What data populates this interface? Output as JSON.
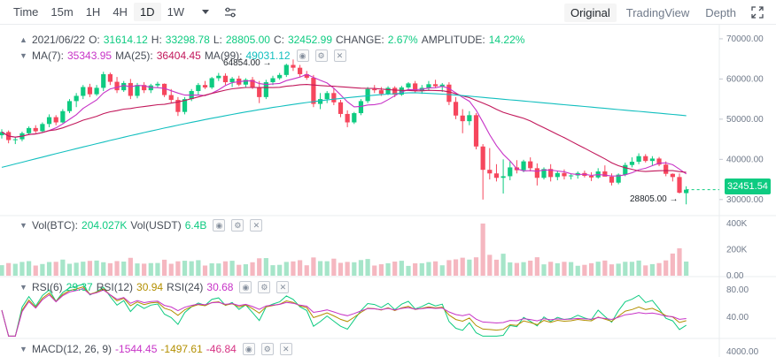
{
  "toolbar": {
    "timeframes": [
      {
        "label": "Time",
        "active": false
      },
      {
        "label": "15m",
        "active": false
      },
      {
        "label": "1H",
        "active": false
      },
      {
        "label": "4H",
        "active": false
      },
      {
        "label": "1D",
        "active": true
      },
      {
        "label": "1W",
        "active": false
      }
    ],
    "icons": [
      "dropdown-triangle-icon",
      "indicator-settings-icon"
    ],
    "views": [
      {
        "label": "Original",
        "active": true
      },
      {
        "label": "TradingView",
        "active": false
      },
      {
        "label": "Depth",
        "active": false
      }
    ],
    "expand_icon": "expand-icon"
  },
  "ohlc": {
    "date": "2021/06/22",
    "o_label": "O:",
    "o": "31614.12",
    "h_label": "H:",
    "h": "33298.78",
    "l_label": "L:",
    "l": "28805.00",
    "c_label": "C:",
    "c": "32452.99",
    "change_label": "CHANGE:",
    "change": "2.67%",
    "amp_label": "AMPLITUDE:",
    "amplitude": "14.22%"
  },
  "ma": {
    "ma7_label": "MA(7):",
    "ma7": "35343.95",
    "ma25_label": "MA(25):",
    "ma25": "36404.45",
    "ma99_label": "MA(99):",
    "ma99": "49031.12"
  },
  "vol": {
    "btc_label": "Vol(BTC):",
    "btc": "204.027K",
    "usdt_label": "Vol(USDT)",
    "usdt": "6.4B"
  },
  "rsi": {
    "r6_label": "RSI(6)",
    "r6": "29.37",
    "r12_label": "RSI(12)",
    "r12": "30.94",
    "r24_label": "RSI(24)",
    "r24": "30.68"
  },
  "macd": {
    "label": "MACD(12, 26, 9)",
    "v1": "-1544.45",
    "v2": "-1497.61",
    "v3": "-46.84"
  },
  "price_axis": [
    "70000.00",
    "60000.00",
    "50000.00",
    "40000.00",
    "30000.00"
  ],
  "vol_axis": [
    "400K",
    "200K",
    "0.00"
  ],
  "rsi_axis": [
    "80.00",
    "40.00"
  ],
  "macd_axis": [
    "4000.00"
  ],
  "high_marker": "64854.00",
  "low_marker": "28805.00",
  "last_price": "32451.54",
  "colors": {
    "up": "#0ecb81",
    "down": "#f6465d",
    "ma7": "#c733c7",
    "ma25": "#c2185b",
    "ma99": "#12bfbf"
  },
  "chart_data": {
    "type": "candlestick",
    "ohlc": [
      [
        46000,
        47500,
        45200,
        46800
      ],
      [
        46800,
        47200,
        44000,
        44800
      ],
      [
        44800,
        45500,
        43800,
        45000
      ],
      [
        45000,
        46900,
        44500,
        46500
      ],
      [
        46500,
        48200,
        46000,
        47800
      ],
      [
        47800,
        48500,
        46500,
        47000
      ],
      [
        47000,
        49200,
        46800,
        48800
      ],
      [
        48800,
        51200,
        48000,
        50500
      ],
      [
        50500,
        51000,
        48500,
        49200
      ],
      [
        49200,
        52500,
        49000,
        52000
      ],
      [
        52000,
        55000,
        51500,
        54500
      ],
      [
        54500,
        56500,
        53000,
        55800
      ],
      [
        55800,
        58500,
        55000,
        58000
      ],
      [
        58000,
        58800,
        55500,
        56200
      ],
      [
        56200,
        58500,
        55800,
        57800
      ],
      [
        57800,
        61800,
        57000,
        61200
      ],
      [
        61200,
        61600,
        58500,
        59300
      ],
      [
        59300,
        60500,
        56500,
        57200
      ],
      [
        57200,
        59500,
        56800,
        59000
      ],
      [
        59000,
        60000,
        55000,
        55800
      ],
      [
        55800,
        59000,
        55200,
        58500
      ],
      [
        58500,
        59200,
        56500,
        57200
      ],
      [
        57200,
        58800,
        56500,
        58400
      ],
      [
        58400,
        59300,
        57800,
        58800
      ],
      [
        58800,
        58900,
        55500,
        56000
      ],
      [
        56000,
        57500,
        54000,
        54800
      ],
      [
        54800,
        55500,
        50800,
        51800
      ],
      [
        51800,
        55500,
        51200,
        55000
      ],
      [
        55000,
        57500,
        54500,
        57000
      ],
      [
        57000,
        59000,
        56000,
        58500
      ],
      [
        58500,
        59500,
        57500,
        57900
      ],
      [
        57900,
        60500,
        57500,
        60200
      ],
      [
        60200,
        61500,
        59500,
        60800
      ],
      [
        60800,
        61400,
        58500,
        59200
      ],
      [
        59200,
        60500,
        58000,
        60100
      ],
      [
        60100,
        60800,
        58200,
        58600
      ],
      [
        58600,
        60200,
        58000,
        59800
      ],
      [
        59800,
        60500,
        57500,
        58000
      ],
      [
        58000,
        59500,
        54000,
        55500
      ],
      [
        55500,
        59800,
        55000,
        59200
      ],
      [
        59200,
        60800,
        58500,
        60200
      ],
      [
        60200,
        61500,
        59800,
        61000
      ],
      [
        61000,
        63800,
        60500,
        63500
      ],
      [
        63500,
        64854,
        62000,
        62800
      ],
      [
        62800,
        63500,
        60500,
        61200
      ],
      [
        61200,
        62000,
        59800,
        60300
      ],
      [
        60300,
        61000,
        53000,
        53800
      ],
      [
        53800,
        56500,
        52500,
        55000
      ],
      [
        55000,
        57000,
        54000,
        56500
      ],
      [
        56500,
        57800,
        53500,
        54200
      ],
      [
        54200,
        54800,
        50500,
        51300
      ],
      [
        51300,
        52200,
        48000,
        49200
      ],
      [
        49200,
        51800,
        48800,
        51500
      ],
      [
        51500,
        55000,
        51000,
        54500
      ],
      [
        54500,
        58000,
        54000,
        57500
      ],
      [
        57500,
        58500,
        56500,
        57200
      ],
      [
        57200,
        58000,
        55800,
        56300
      ],
      [
        56300,
        58200,
        56000,
        57800
      ],
      [
        57800,
        58200,
        55500,
        56100
      ],
      [
        56100,
        58300,
        55800,
        57900
      ],
      [
        57900,
        59200,
        57500,
        58900
      ],
      [
        58900,
        59500,
        56500,
        57100
      ],
      [
        57100,
        58500,
        56300,
        57800
      ],
      [
        57800,
        59500,
        57200,
        58700
      ],
      [
        58700,
        59800,
        57800,
        58200
      ],
      [
        58200,
        59000,
        56800,
        58600
      ],
      [
        58600,
        59200,
        53500,
        54300
      ],
      [
        54300,
        55500,
        50000,
        50900
      ],
      [
        50900,
        52500,
        46500,
        49500
      ],
      [
        49500,
        52000,
        48500,
        51000
      ],
      [
        51000,
        51500,
        42500,
        43200
      ],
      [
        43200,
        43800,
        30000,
        37400
      ],
      [
        37400,
        42800,
        35000,
        36500
      ],
      [
        36500,
        38800,
        34500,
        35400
      ],
      [
        35400,
        40000,
        31500,
        35800
      ],
      [
        35800,
        39500,
        34800,
        38000
      ],
      [
        38000,
        39800,
        36500,
        37300
      ],
      [
        37300,
        39900,
        36800,
        39500
      ],
      [
        39500,
        40500,
        37000,
        37800
      ],
      [
        37800,
        39000,
        33500,
        35400
      ],
      [
        35400,
        38000,
        35000,
        37600
      ],
      [
        37600,
        38800,
        34500,
        35600
      ],
      [
        35600,
        37000,
        34800,
        36600
      ],
      [
        36600,
        37500,
        35000,
        35800
      ],
      [
        35800,
        36400,
        35000,
        36000
      ],
      [
        36000,
        37000,
        35200,
        36600
      ],
      [
        36600,
        37200,
        35500,
        35900
      ],
      [
        35900,
        36800,
        34600,
        35500
      ],
      [
        35500,
        37800,
        35200,
        37000
      ],
      [
        37000,
        38500,
        35800,
        35700
      ],
      [
        35700,
        36500,
        33500,
        34200
      ],
      [
        34200,
        36500,
        33800,
        36200
      ],
      [
        36200,
        39200,
        35800,
        38600
      ],
      [
        38600,
        40500,
        38000,
        39400
      ],
      [
        39400,
        41500,
        38800,
        40800
      ],
      [
        40800,
        41300,
        39200,
        39600
      ],
      [
        39600,
        40800,
        38500,
        40200
      ],
      [
        40200,
        40600,
        38300,
        38700
      ],
      [
        38700,
        39500,
        35800,
        36400
      ],
      [
        36400,
        36500,
        34500,
        35600
      ],
      [
        35600,
        36500,
        31500,
        31700
      ],
      [
        31600,
        33300,
        28805,
        32452
      ]
    ],
    "ma_series": [
      {
        "name": "MA(7)",
        "color": "#c733c7"
      },
      {
        "name": "MA(25)",
        "color": "#c2185b"
      },
      {
        "name": "MA(99)",
        "color": "#12bfbf"
      }
    ],
    "price_range": [
      26000,
      73500
    ]
  }
}
